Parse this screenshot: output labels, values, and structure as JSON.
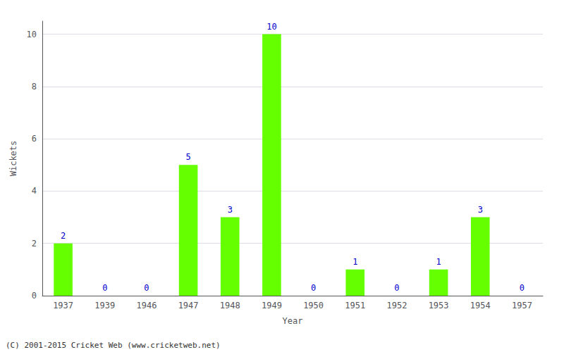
{
  "chart_data": {
    "type": "bar",
    "xlabel": "Year",
    "ylabel": "Wickets",
    "categories": [
      "1937",
      "1939",
      "1946",
      "1947",
      "1948",
      "1949",
      "1950",
      "1951",
      "1952",
      "1953",
      "1954",
      "1957"
    ],
    "values": [
      2,
      0,
      0,
      5,
      3,
      10,
      0,
      1,
      0,
      1,
      3,
      0
    ],
    "color": "#66ff00",
    "ylim": [
      0,
      10.5
    ],
    "yticks": [
      0,
      2,
      4,
      6,
      8,
      10
    ],
    "grid": true,
    "data_labels": true,
    "annotations": [
      "(C) 2001-2015 Cricket Web (www.cricketweb.net)"
    ]
  }
}
